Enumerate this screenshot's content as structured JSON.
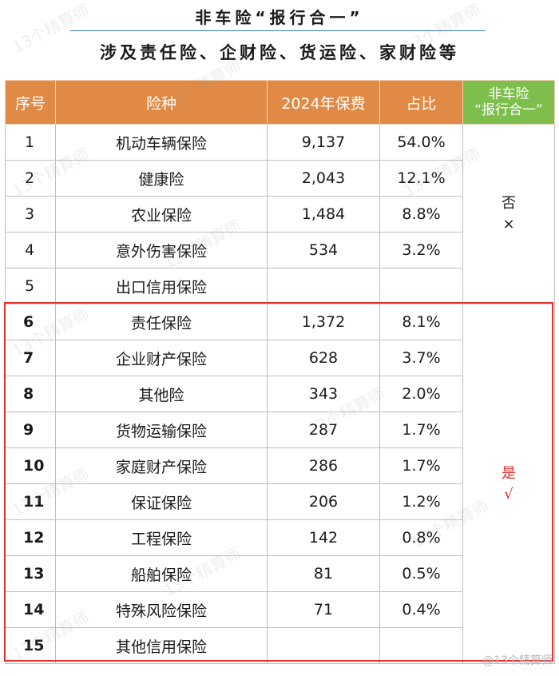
{
  "title": "非车险“报行合一”",
  "subtitle": "涉及责任险、企财险、货运险、家财险等",
  "table": {
    "headers": [
      "序号",
      "险种",
      "2024年保费",
      "占比",
      "非车险",
      "“报行合一”"
    ],
    "rows": [
      {
        "seq": "1",
        "type": "机动车辆保险",
        "premium": "9,137",
        "share": "54.0%"
      },
      {
        "seq": "2",
        "type": "健康险",
        "premium": "2,043",
        "share": "12.1%"
      },
      {
        "seq": "3",
        "type": "农业保险",
        "premium": "1,484",
        "share": "8.8%"
      },
      {
        "seq": "4",
        "type": "意外伤害保险",
        "premium": "534",
        "share": "3.2%"
      },
      {
        "seq": "5",
        "type": "出口信用保险",
        "premium": "",
        "share": ""
      },
      {
        "seq": "6",
        "type": "责任保险",
        "premium": "1,372",
        "share": "8.1%"
      },
      {
        "seq": "7",
        "type": "企业财产保险",
        "premium": "628",
        "share": "3.7%"
      },
      {
        "seq": "8",
        "type": "其他险",
        "premium": "343",
        "share": "2.0%"
      },
      {
        "seq": "9",
        "type": "货物运输保险",
        "premium": "287",
        "share": "1.7%"
      },
      {
        "seq": "10",
        "type": "家庭财产保险",
        "premium": "286",
        "share": "1.7%"
      },
      {
        "seq": "11",
        "type": "保证保险",
        "premium": "206",
        "share": "1.2%"
      },
      {
        "seq": "12",
        "type": "工程保险",
        "premium": "142",
        "share": "0.8%"
      },
      {
        "seq": "13",
        "type": "船舶保险",
        "premium": "81",
        "share": "0.5%"
      },
      {
        "seq": "14",
        "type": "特殊风险保险",
        "premium": "71",
        "share": "0.4%"
      },
      {
        "seq": "15",
        "type": "其他信用保险",
        "premium": "",
        "share": ""
      }
    ],
    "no_mark": {
      "text": "否",
      "symbol": "×"
    },
    "yes_mark": {
      "text": "是",
      "symbol": "√"
    }
  },
  "watermark": "13个精算师",
  "credit": "@13个精算师",
  "colors": {
    "header_orange": "#e08a45",
    "header_green": "#7dbe4c",
    "highlight_red": "#e5322d"
  }
}
